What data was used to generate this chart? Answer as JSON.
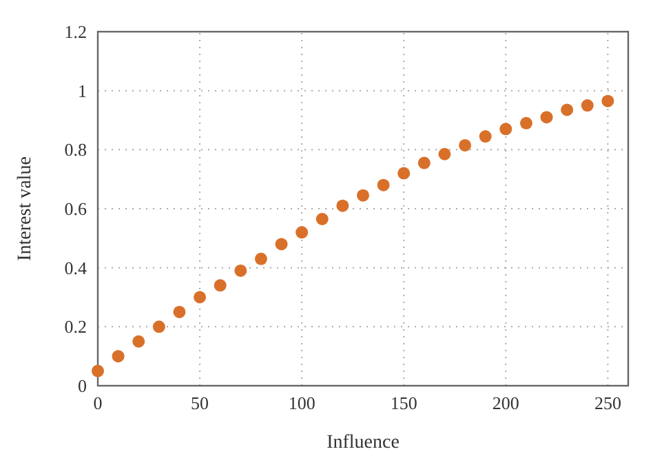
{
  "chart_data": {
    "type": "scatter",
    "xlabel": "Influence",
    "ylabel": "Interest value",
    "x": [
      0,
      10,
      20,
      30,
      40,
      50,
      60,
      70,
      80,
      90,
      100,
      110,
      120,
      130,
      140,
      150,
      160,
      170,
      180,
      190,
      200,
      210,
      220,
      230,
      240,
      250
    ],
    "series": [
      {
        "color": "#d9702a",
        "values": [
          0.05,
          0.1,
          0.15,
          0.2,
          0.25,
          0.3,
          0.34,
          0.39,
          0.43,
          0.48,
          0.52,
          0.565,
          0.61,
          0.645,
          0.68,
          0.72,
          0.755,
          0.785,
          0.815,
          0.845,
          0.87,
          0.89,
          0.91,
          0.935,
          0.95,
          0.965
        ]
      }
    ],
    "xlim": [
      0,
      260
    ],
    "xticks": [
      0,
      50,
      100,
      150,
      200,
      250
    ],
    "ylim": [
      0,
      1.2
    ],
    "yticks": [
      0,
      0.2,
      0.4,
      0.6,
      0.8,
      1,
      1.2
    ],
    "grid": true,
    "marker": "circle"
  }
}
